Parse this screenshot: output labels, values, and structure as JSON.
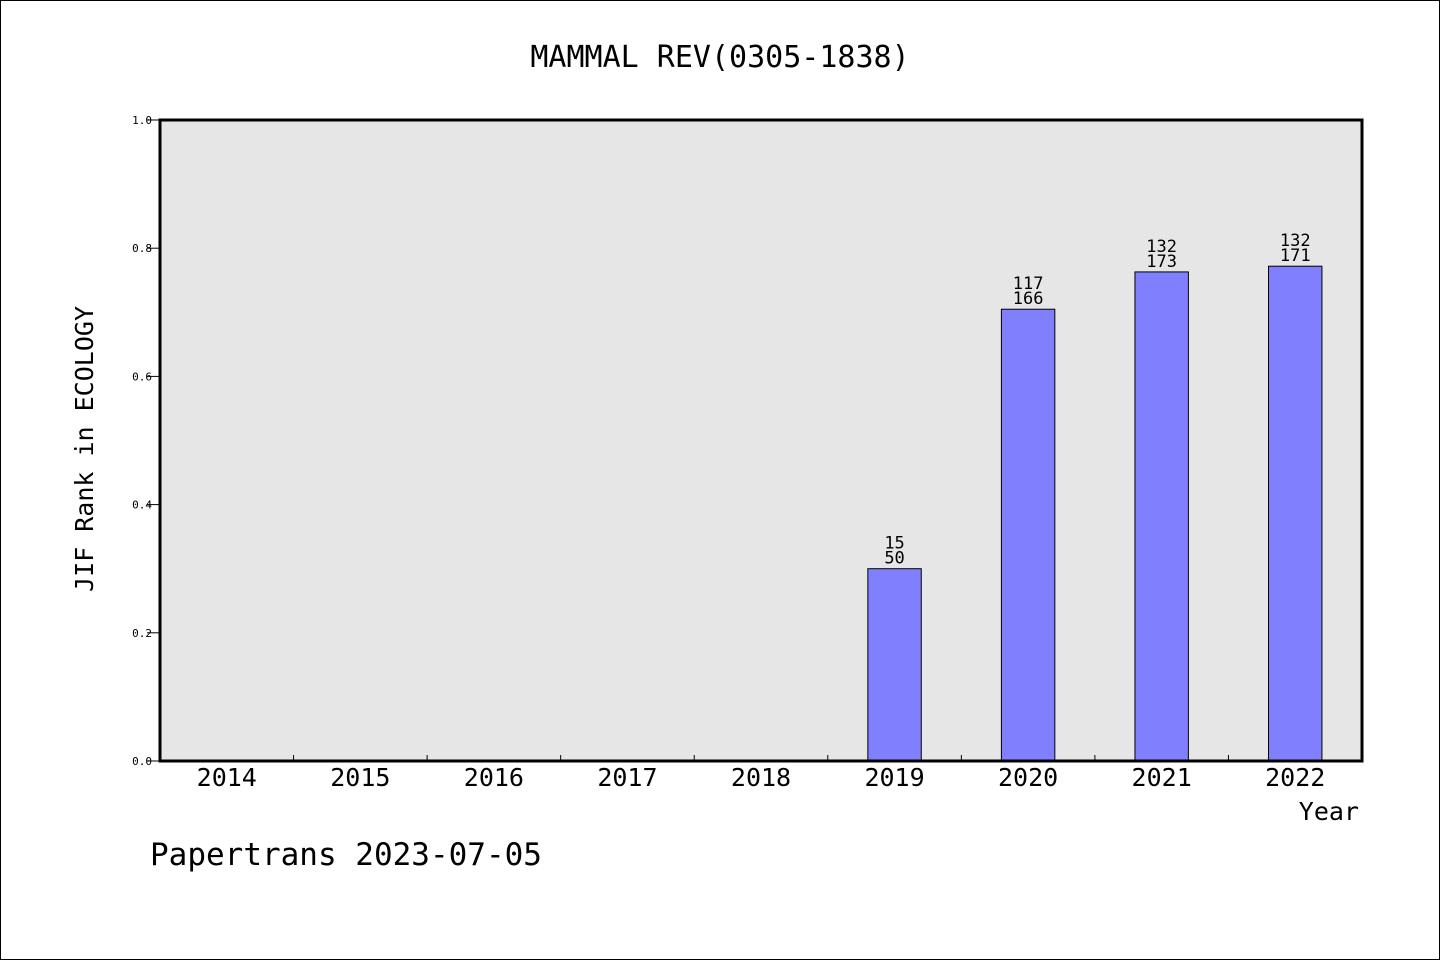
{
  "chart_data": {
    "type": "bar",
    "title": "MAMMAL REV(0305-1838)",
    "xlabel": "Year",
    "ylabel": "JIF Rank in ECOLOGY",
    "footer": "Papertrans 2023-07-05",
    "categories": [
      "2014",
      "2015",
      "2016",
      "2017",
      "2018",
      "2019",
      "2020",
      "2021",
      "2022"
    ],
    "values": [
      null,
      null,
      null,
      null,
      null,
      0.3,
      0.7048,
      0.763,
      0.7719
    ],
    "rank_labels": [
      null,
      null,
      null,
      null,
      null,
      "15",
      "117",
      "132",
      "132"
    ],
    "total_labels": [
      null,
      null,
      null,
      null,
      null,
      "50",
      "166",
      "173",
      "171"
    ],
    "ylim": [
      0,
      1.0
    ],
    "yticks": [
      "0.0",
      "0.2",
      "0.4",
      "0.6",
      "0.8",
      "1.0"
    ],
    "grid": false,
    "colors": {
      "bar": "#8080ff",
      "plot_bg": "#e6e6e6",
      "axis": "#000000"
    }
  }
}
